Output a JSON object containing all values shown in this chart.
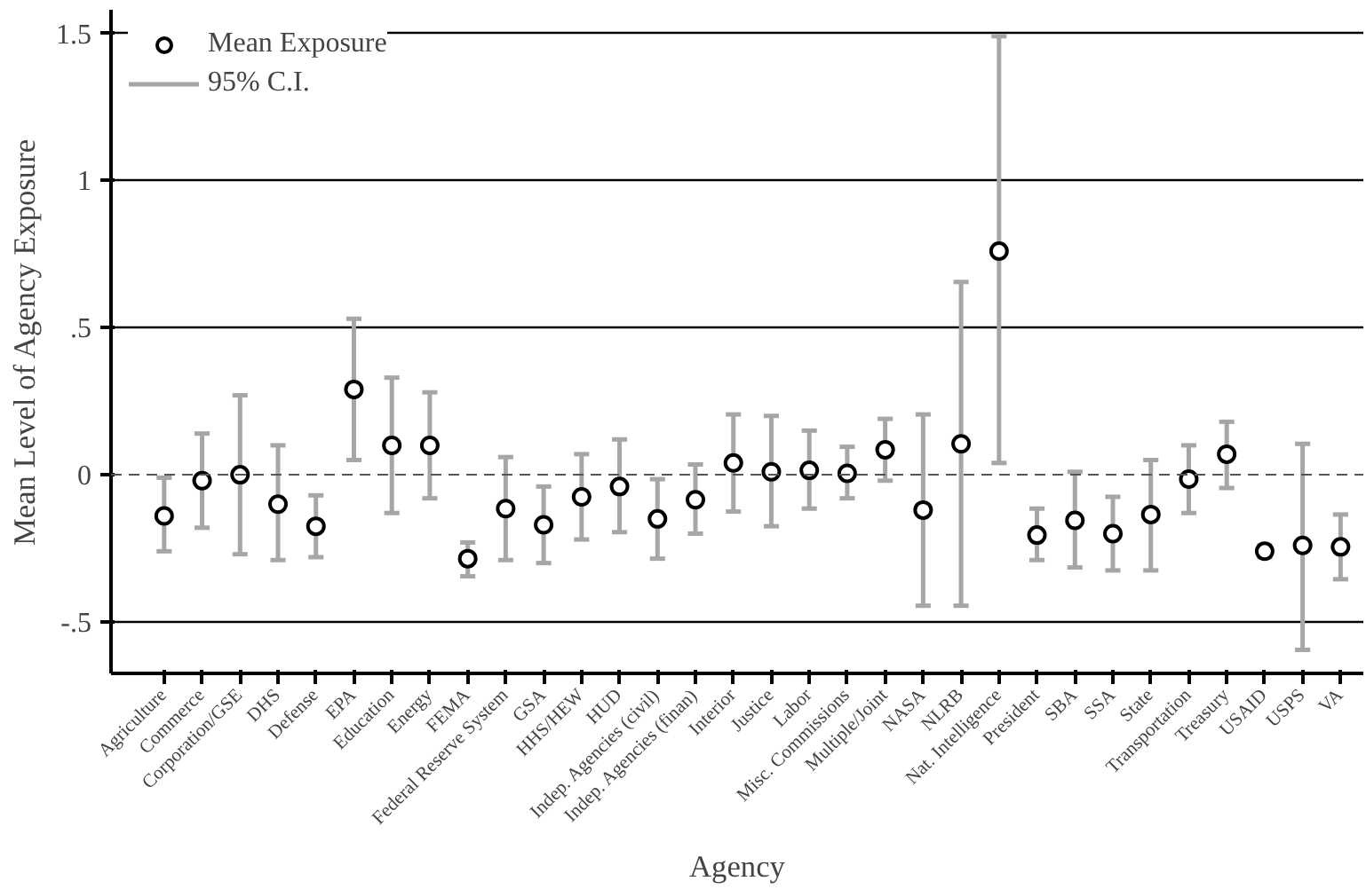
{
  "chart_data": {
    "type": "scatter",
    "xlabel": "Agency",
    "ylabel": "Mean Level of Agency Exposure",
    "categories": [
      "Agriculture",
      "Commerce",
      "Corporation/GSE",
      "DHS",
      "Defense",
      "EPA",
      "Education",
      "Energy",
      "FEMA",
      "Federal Reserve System",
      "GSA",
      "HHS/HEW",
      "HUD",
      "Indep. Agencies (civil)",
      "Indep. Agencies (finan)",
      "Interior",
      "Justice",
      "Labor",
      "Misc. Commissions",
      "Multiple/Joint",
      "NASA",
      "NLRB",
      "Nat. Intelligence",
      "President",
      "SBA",
      "SSA",
      "State",
      "Transportation",
      "Treasury",
      "USAID",
      "USPS",
      "VA"
    ],
    "series": [
      {
        "name": "Mean Exposure",
        "color": "#000000",
        "values": [
          -0.14,
          -0.02,
          0.0,
          -0.1,
          -0.175,
          0.29,
          0.1,
          0.1,
          -0.285,
          -0.115,
          -0.17,
          -0.075,
          -0.04,
          -0.15,
          -0.085,
          0.04,
          0.01,
          0.015,
          0.005,
          0.085,
          -0.12,
          0.105,
          0.76,
          -0.205,
          -0.155,
          -0.2,
          -0.135,
          -0.015,
          0.07,
          -0.26,
          -0.24,
          -0.245
        ],
        "errors": [
          [
            -0.26,
            -0.01
          ],
          [
            -0.18,
            0.14
          ],
          [
            -0.27,
            0.27
          ],
          [
            -0.29,
            0.1
          ],
          [
            -0.28,
            -0.07
          ],
          [
            0.05,
            0.53
          ],
          [
            -0.13,
            0.33
          ],
          [
            -0.08,
            0.28
          ],
          [
            -0.345,
            -0.23
          ],
          [
            -0.29,
            0.06
          ],
          [
            -0.3,
            -0.04
          ],
          [
            -0.22,
            0.07
          ],
          [
            -0.195,
            0.12
          ],
          [
            -0.285,
            -0.015
          ],
          [
            -0.2,
            0.035
          ],
          [
            -0.125,
            0.205
          ],
          [
            -0.175,
            0.2
          ],
          [
            -0.115,
            0.15
          ],
          [
            -0.08,
            0.095
          ],
          [
            -0.02,
            0.19
          ],
          [
            -0.445,
            0.205
          ],
          [
            -0.445,
            0.655
          ],
          [
            0.04,
            1.49
          ],
          [
            -0.29,
            -0.115
          ],
          [
            -0.315,
            0.01
          ],
          [
            -0.325,
            -0.075
          ],
          [
            -0.325,
            0.05
          ],
          [
            -0.13,
            0.1
          ],
          [
            -0.045,
            0.18
          ],
          [
            -0.28,
            -0.24
          ],
          [
            -0.595,
            0.105
          ],
          [
            -0.355,
            -0.135
          ]
        ]
      }
    ],
    "annotations": [
      "95% C.I."
    ],
    "ylim": [
      -0.675,
      1.58
    ],
    "yticks": [
      {
        "value": 1.5,
        "label": "1.5"
      },
      {
        "value": 1,
        "label": "1"
      },
      {
        "value": 0.5,
        "label": ".5"
      },
      {
        "value": 0,
        "label": "0"
      },
      {
        "value": -0.5,
        "label": "-.5"
      }
    ],
    "ref_lines": [
      {
        "axis": "y",
        "value": 0,
        "label": null,
        "line_style": "dashed"
      }
    ],
    "grid": "y",
    "legend": "top left",
    "marker": "circle"
  }
}
